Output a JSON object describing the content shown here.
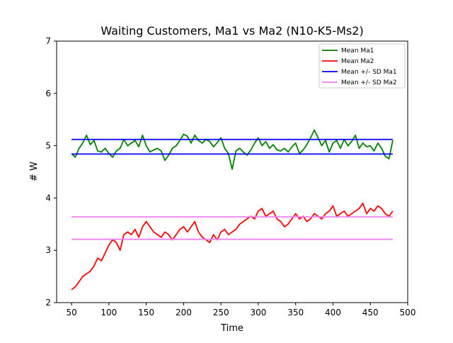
{
  "chart_data": {
    "type": "line",
    "title": "Waiting Customers, Ma1 vs Ma2 (N10-K5-Ms2)",
    "xlabel": "Time",
    "ylabel": "# W",
    "xlim": [
      30,
      500
    ],
    "ylim": [
      2,
      7
    ],
    "xticks": [
      50,
      100,
      150,
      200,
      250,
      300,
      350,
      400,
      450,
      500
    ],
    "yticks": [
      2,
      3,
      4,
      5,
      6,
      7
    ],
    "grid": false,
    "legend_position": "top-right",
    "series": [
      {
        "name": "Mean Ma1",
        "color": "#008000",
        "x": [
          50,
          55,
          60,
          65,
          70,
          75,
          80,
          85,
          90,
          95,
          100,
          105,
          110,
          115,
          120,
          125,
          130,
          135,
          140,
          145,
          150,
          155,
          160,
          165,
          170,
          175,
          180,
          185,
          190,
          195,
          200,
          205,
          210,
          215,
          220,
          225,
          230,
          235,
          240,
          245,
          250,
          255,
          260,
          265,
          270,
          275,
          280,
          285,
          290,
          295,
          300,
          305,
          310,
          315,
          320,
          325,
          330,
          335,
          340,
          345,
          350,
          355,
          360,
          365,
          370,
          375,
          380,
          385,
          390,
          395,
          400,
          405,
          410,
          415,
          420,
          425,
          430,
          435,
          440,
          445,
          450,
          455,
          460,
          465,
          470,
          475,
          480
        ],
        "y": [
          4.85,
          4.78,
          4.95,
          5.05,
          5.2,
          5.02,
          5.1,
          4.9,
          4.88,
          4.95,
          4.85,
          4.78,
          4.9,
          4.95,
          5.12,
          5.0,
          5.05,
          5.1,
          4.98,
          5.2,
          5.0,
          4.88,
          4.92,
          4.95,
          4.9,
          4.72,
          4.82,
          4.95,
          5.0,
          5.1,
          5.22,
          5.18,
          5.05,
          5.2,
          5.1,
          5.05,
          5.12,
          5.08,
          4.98,
          5.06,
          5.15,
          4.95,
          4.85,
          4.55,
          4.9,
          4.95,
          4.88,
          4.82,
          4.92,
          5.05,
          5.15,
          5.0,
          5.08,
          4.95,
          5.02,
          4.92,
          4.9,
          4.95,
          4.88,
          4.98,
          5.05,
          4.85,
          4.92,
          5.02,
          5.15,
          5.3,
          5.15,
          5.0,
          5.1,
          4.88,
          5.05,
          5.1,
          4.95,
          5.12,
          5.0,
          5.08,
          5.2,
          4.95,
          5.05,
          4.98,
          5.0,
          4.9,
          5.05,
          4.95,
          4.8,
          4.75,
          5.1
        ]
      },
      {
        "name": "Mean Ma2",
        "color": "#ff0000",
        "x": [
          50,
          55,
          60,
          65,
          70,
          75,
          80,
          85,
          90,
          95,
          100,
          105,
          110,
          115,
          120,
          125,
          130,
          135,
          140,
          145,
          150,
          155,
          160,
          165,
          170,
          175,
          180,
          185,
          190,
          195,
          200,
          205,
          210,
          215,
          220,
          225,
          230,
          235,
          240,
          245,
          250,
          255,
          260,
          265,
          270,
          275,
          280,
          285,
          290,
          295,
          300,
          305,
          310,
          315,
          320,
          325,
          330,
          335,
          340,
          345,
          350,
          355,
          360,
          365,
          370,
          375,
          380,
          385,
          390,
          395,
          400,
          405,
          410,
          415,
          420,
          425,
          430,
          435,
          440,
          445,
          450,
          455,
          460,
          465,
          470,
          475,
          480
        ],
        "y": [
          2.25,
          2.3,
          2.4,
          2.5,
          2.55,
          2.6,
          2.7,
          2.85,
          2.8,
          2.95,
          3.1,
          3.2,
          3.15,
          3.0,
          3.3,
          3.35,
          3.3,
          3.4,
          3.25,
          3.45,
          3.55,
          3.45,
          3.35,
          3.3,
          3.25,
          3.35,
          3.3,
          3.2,
          3.3,
          3.4,
          3.45,
          3.35,
          3.45,
          3.55,
          3.35,
          3.25,
          3.2,
          3.15,
          3.3,
          3.2,
          3.35,
          3.4,
          3.3,
          3.35,
          3.4,
          3.5,
          3.55,
          3.6,
          3.65,
          3.6,
          3.75,
          3.8,
          3.65,
          3.7,
          3.75,
          3.6,
          3.55,
          3.45,
          3.5,
          3.6,
          3.7,
          3.6,
          3.65,
          3.55,
          3.6,
          3.7,
          3.65,
          3.6,
          3.7,
          3.75,
          3.85,
          3.65,
          3.7,
          3.75,
          3.65,
          3.7,
          3.75,
          3.8,
          3.9,
          3.7,
          3.8,
          3.75,
          3.85,
          3.8,
          3.7,
          3.65,
          3.75
        ]
      },
      {
        "name": "Mean +/- SD Ma1",
        "color": "#0000ff",
        "band": true,
        "x": [
          50,
          480
        ],
        "lines": [
          5.12,
          4.84
        ]
      },
      {
        "name": "Mean +/- SD Ma2",
        "color": "#ee82ee",
        "band": true,
        "x": [
          50,
          480
        ],
        "lines": [
          3.64,
          3.21
        ]
      }
    ]
  }
}
